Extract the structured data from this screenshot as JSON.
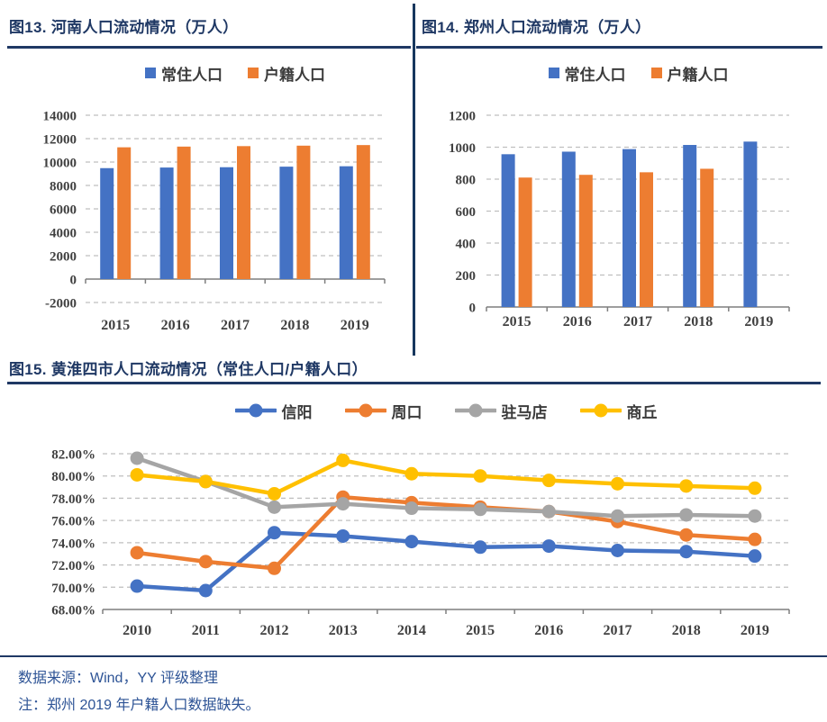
{
  "theme": {
    "title_color": "#1F3864",
    "rule_color": "#1F3864",
    "footer_text_color": "#2E5496",
    "grid_color": "#BFBFBF",
    "axis_color": "#7F7F7F",
    "tick_label_color": "#404040",
    "series_blue": "#4472C4",
    "series_orange": "#ED7D31",
    "series_gray": "#A5A5A5",
    "series_yellow": "#FFC000"
  },
  "footer": {
    "source": "数据来源：Wind，YY 评级整理",
    "note": "注：郑州 2019 年户籍人口数据缺失。"
  },
  "chart_data": [
    {
      "type": "bar",
      "title": "图13. 河南人口流动情况（万人）",
      "categories": [
        "2015",
        "2016",
        "2017",
        "2018",
        "2019"
      ],
      "series": [
        {
          "name": "常住人口",
          "color": "#4472C4",
          "values": [
            9480,
            9532,
            9559,
            9605,
            9640
          ]
        },
        {
          "name": "户籍人口",
          "color": "#ED7D31",
          "values": [
            11260,
            11320,
            11360,
            11400,
            11450
          ]
        }
      ],
      "ylim": [
        -2000,
        14000
      ],
      "ystep": 2000,
      "grid": true,
      "legend_position": "top"
    },
    {
      "type": "bar",
      "title": "图14. 郑州人口流动情况（万人）",
      "categories": [
        "2015",
        "2016",
        "2017",
        "2018",
        "2019"
      ],
      "series": [
        {
          "name": "常住人口",
          "color": "#4472C4",
          "values": [
            956,
            972,
            988,
            1014,
            1035
          ]
        },
        {
          "name": "户籍人口",
          "color": "#ED7D31",
          "values": [
            810,
            827,
            843,
            865,
            null
          ]
        }
      ],
      "ylim": [
        0,
        1200
      ],
      "ystep": 200,
      "grid": true,
      "legend_position": "top"
    },
    {
      "type": "line",
      "title": "图15. 黄淮四市人口流动情况（常住人口/户籍人口）",
      "categories": [
        "2010",
        "2011",
        "2012",
        "2013",
        "2014",
        "2015",
        "2016",
        "2017",
        "2018",
        "2019"
      ],
      "series": [
        {
          "name": "信阳",
          "color": "#4472C4",
          "values": [
            70.1,
            69.7,
            74.9,
            74.6,
            74.1,
            73.6,
            73.7,
            73.3,
            73.2,
            72.8
          ]
        },
        {
          "name": "周口",
          "color": "#ED7D31",
          "values": [
            73.1,
            72.3,
            71.7,
            78.1,
            77.6,
            77.2,
            76.8,
            75.9,
            74.7,
            74.3
          ]
        },
        {
          "name": "驻马店",
          "color": "#A5A5A5",
          "values": [
            81.6,
            79.5,
            77.2,
            77.5,
            77.1,
            77.0,
            76.8,
            76.4,
            76.5,
            76.4
          ]
        },
        {
          "name": "商丘",
          "color": "#FFC000",
          "values": [
            80.1,
            79.5,
            78.4,
            81.4,
            80.2,
            80.0,
            79.6,
            79.3,
            79.1,
            78.9
          ]
        }
      ],
      "ylim": [
        68,
        82
      ],
      "ystep": 2,
      "yformat": "percent2",
      "grid": true,
      "legend_position": "top"
    }
  ]
}
